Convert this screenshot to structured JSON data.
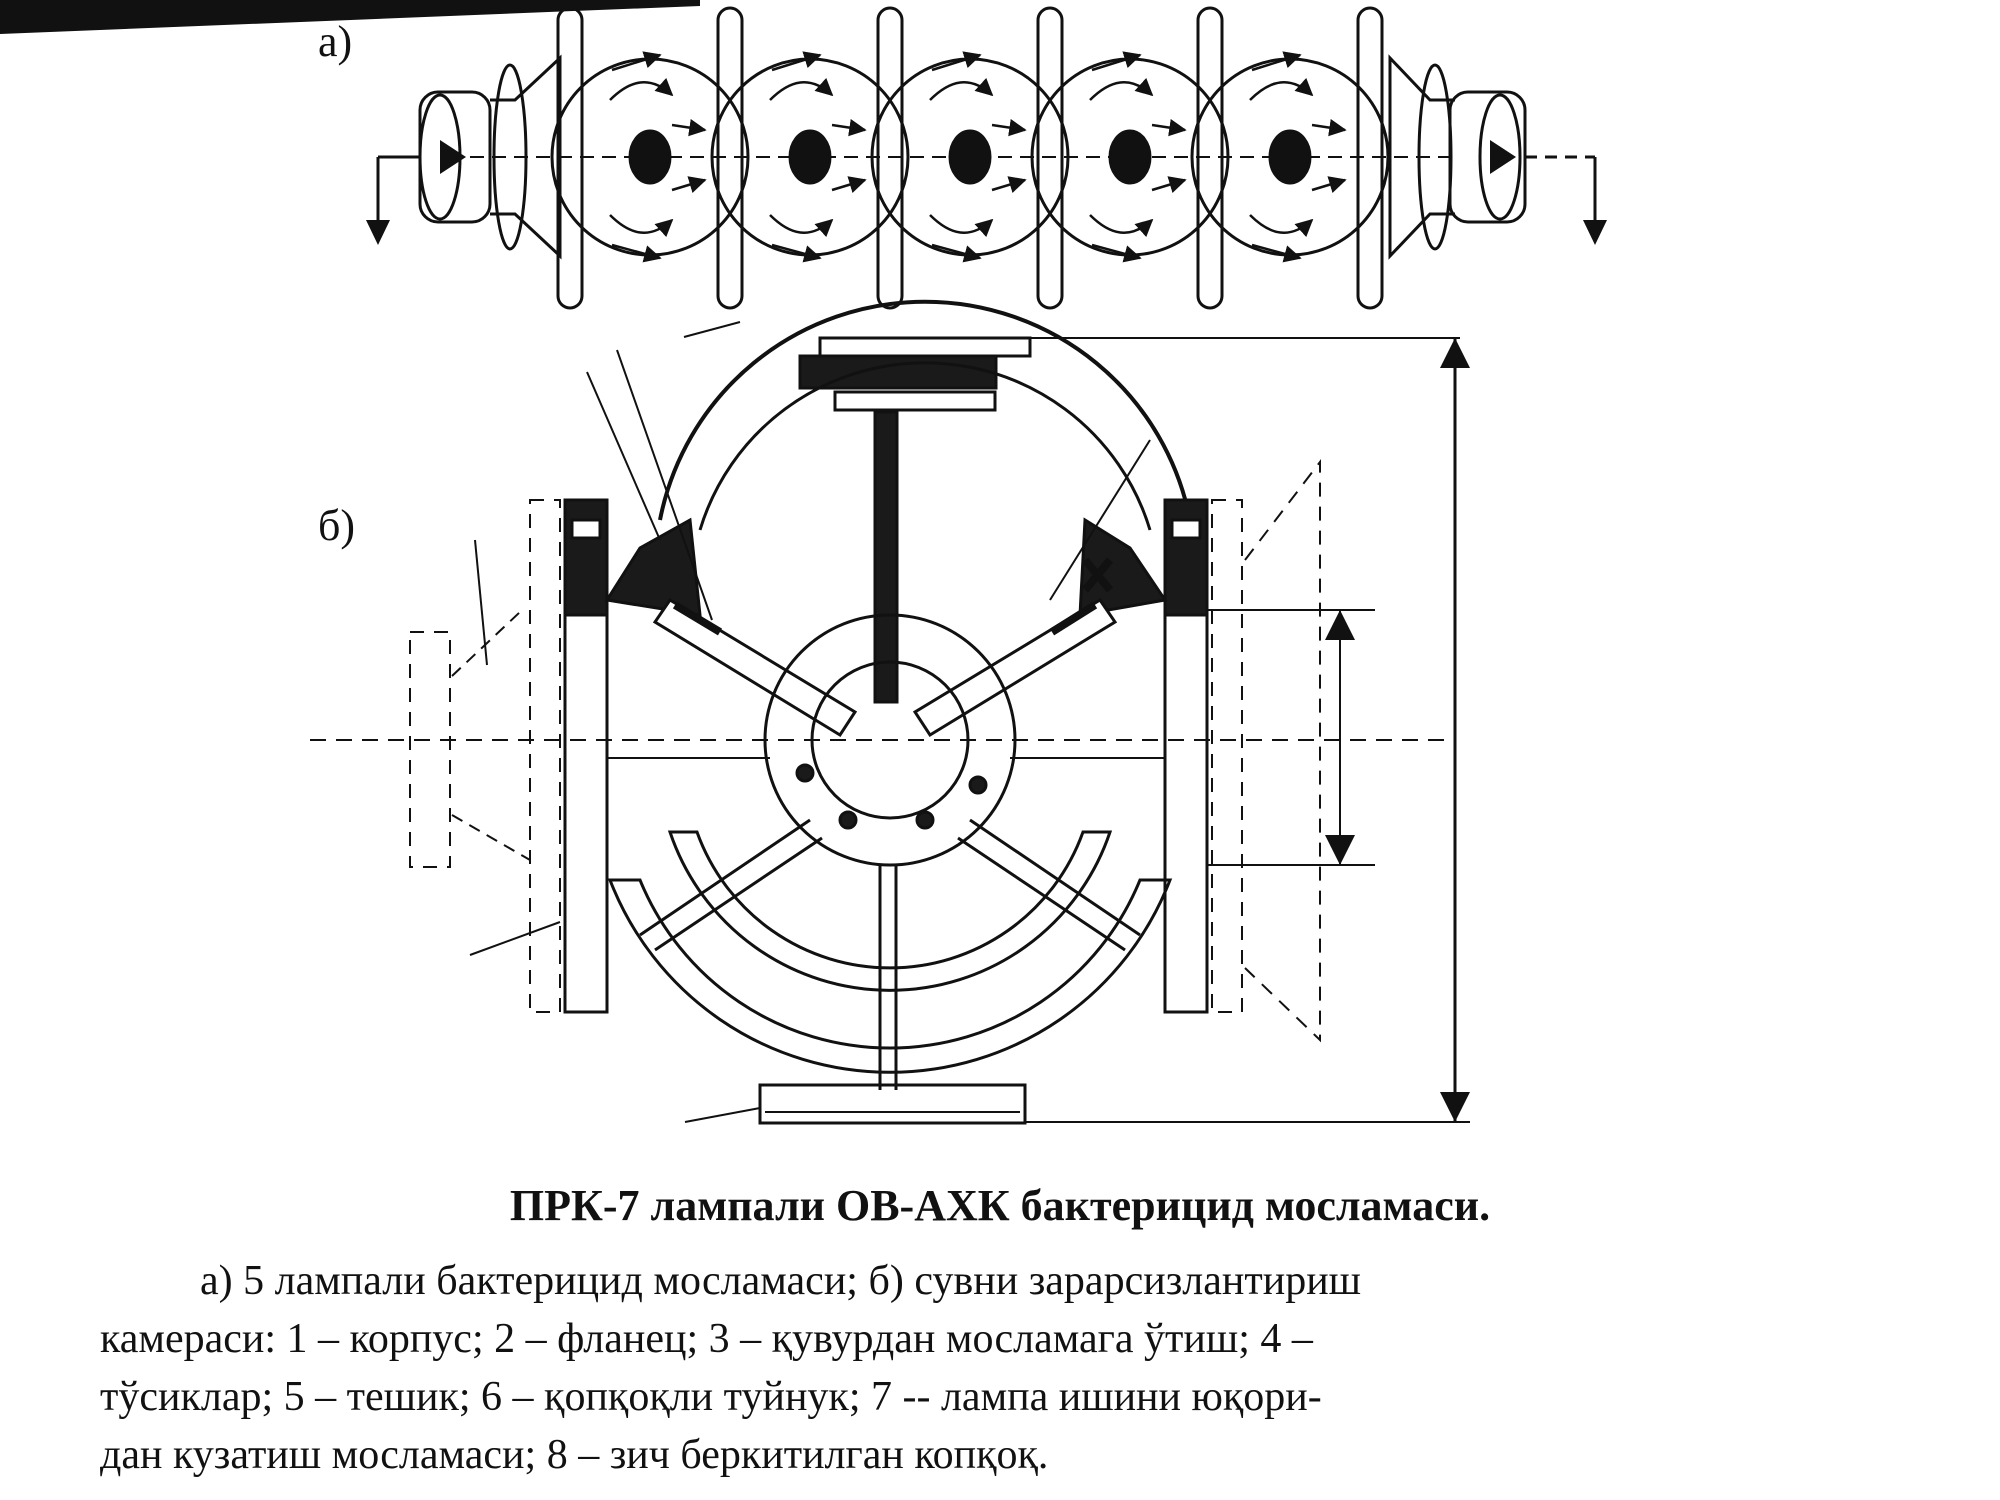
{
  "labels": {
    "part_a": "а)",
    "part_b": "б)"
  },
  "caption": {
    "title": "ПРК-7 лампали ОВ-АХК бактерицид мосламаси.",
    "lines": [
      "а) 5 лампали бактерицид  мосламаси; б) сувни зарарсизлантириш",
      "камераси: 1 – корпус; 2 – фланец; 3 – қувурдан мосламага ўтиш; 4 –",
      "тўсиклар; 5 – тешик; 6 – қопқоқли туйнук; 7 -- лампа ишини юқори-",
      "дан кузатиш мосламаси; 8 – зич беркитилган копқоқ."
    ]
  },
  "colors": {
    "ink": "#111111",
    "paper": "#ffffff",
    "fill": "#1a1a1a"
  },
  "icons": [
    "flow-arrow-icon",
    "uv-lamp-icon"
  ]
}
